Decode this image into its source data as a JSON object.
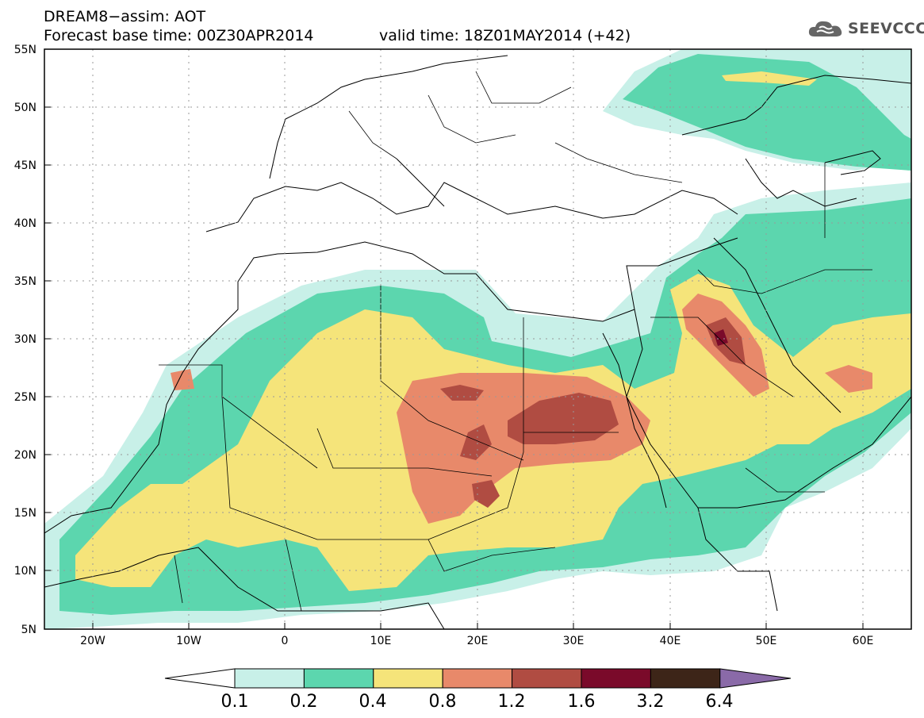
{
  "title": {
    "line1": "DREAM8−assim: AOT",
    "line2_base": "Forecast base time: 00Z30APR2014",
    "line2_valid": "valid time: 18Z01MAY2014 (+42)"
  },
  "logo": {
    "text": "SEEVCCC",
    "icon": "cloud-icon"
  },
  "map": {
    "extent": {
      "lon": [
        -25,
        65
      ],
      "lat": [
        5,
        55
      ]
    },
    "lat_labels": [
      "55N",
      "50N",
      "45N",
      "40N",
      "35N",
      "30N",
      "25N",
      "20N",
      "15N",
      "10N",
      "5N"
    ],
    "lon_labels": [
      "20W",
      "10W",
      "0",
      "10E",
      "20E",
      "30E",
      "40E",
      "50E",
      "60E"
    ],
    "grid": "dotted"
  },
  "colorbar": {
    "levels": [
      "0.1",
      "0.2",
      "0.4",
      "0.8",
      "1.2",
      "1.6",
      "3.2",
      "6.4"
    ],
    "colors": [
      "#ffffff",
      "#c8f0e8",
      "#5cd6ae",
      "#f5e47a",
      "#e8896a",
      "#b04c42",
      "#7a0a2a",
      "#3d2518",
      "#8a6aa8"
    ]
  }
}
